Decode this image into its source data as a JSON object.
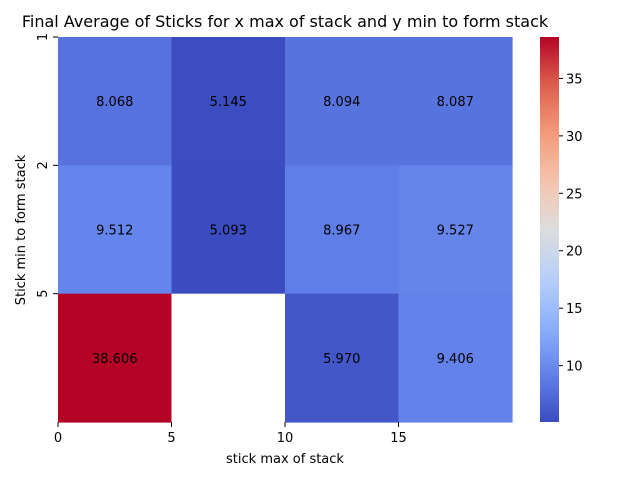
{
  "chart_data": {
    "type": "heatmap",
    "title": "Final Average of Sticks for x max of stack and y min to form stack",
    "xlabel": "stick max of stack",
    "ylabel": "Stick min to form stack",
    "x_ticks": [
      "0",
      "5",
      "10",
      "15"
    ],
    "y_ticks": [
      "1",
      "2",
      "5"
    ],
    "rows": [
      {
        "y": "1",
        "cells": [
          8.068,
          5.145,
          8.094,
          8.087
        ]
      },
      {
        "y": "2",
        "cells": [
          9.512,
          5.093,
          8.967,
          9.527
        ]
      },
      {
        "y": "5",
        "cells": [
          38.606,
          null,
          5.97,
          9.406
        ]
      }
    ],
    "value_labels": [
      [
        "8.068",
        "5.145",
        "8.094",
        "8.087"
      ],
      [
        "9.512",
        "5.093",
        "8.967",
        "9.527"
      ],
      [
        "38.606",
        "",
        "5.970",
        "9.406"
      ]
    ],
    "colormap": "coolwarm",
    "vmin": 5.093,
    "vmax": 38.606,
    "colorbar_ticks": [
      "10",
      "15",
      "20",
      "25",
      "30",
      "35"
    ],
    "colorbar_tick_values": [
      10,
      15,
      20,
      25,
      30,
      35
    ],
    "missing_color": "#ffffff"
  }
}
